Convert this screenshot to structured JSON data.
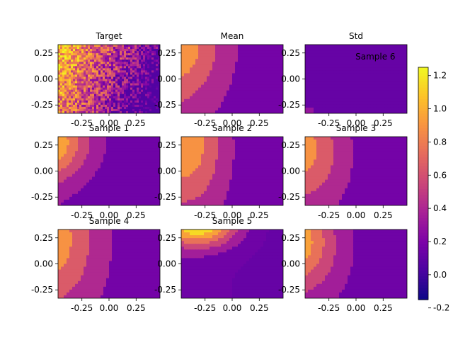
{
  "figure": {
    "background": "#ffffff"
  },
  "chart_data": {
    "type": "heatmap",
    "colormap": "plasma",
    "colorbar": {
      "range": [
        -0.15,
        1.25
      ],
      "ticks": [
        "1.2",
        "1.0",
        "0.8",
        "0.6",
        "0.4",
        "0.2",
        "0.0",
        "-0.2"
      ],
      "tick_values": [
        1.2,
        1.0,
        0.8,
        0.6,
        0.4,
        0.2,
        0.0,
        -0.2
      ]
    },
    "axes": {
      "xlim": [
        -0.47,
        0.47
      ],
      "ylim": [
        -0.33,
        0.33
      ],
      "xticks": [
        "-0.25",
        "0.00",
        "0.25"
      ],
      "xtick_values": [
        -0.25,
        0.0,
        0.25
      ],
      "yticks": [
        "0.25",
        "0.00",
        "-0.25"
      ],
      "ytick_values": [
        0.25,
        0.0,
        -0.25
      ]
    },
    "panels": [
      {
        "title": "Target",
        "kind": "noise"
      },
      {
        "title": "Mean",
        "kind": "contour",
        "params": {
          "peak": 1.0,
          "cx": -0.55,
          "cy": 0.35,
          "sx": 0.42,
          "sy": 0.55,
          "tilt": 0.0,
          "base": 0.25,
          "bands": 5
        }
      },
      {
        "title": "Std",
        "kind": "std",
        "overlay_text": "Sample 6"
      },
      {
        "title": "Sample 1",
        "kind": "contour",
        "params": {
          "peak": 1.3,
          "cx": -0.6,
          "cy": 0.45,
          "sx": 0.45,
          "sy": 0.35,
          "tilt": 0.9,
          "base": 0.2,
          "bands": 6
        }
      },
      {
        "title": "Sample 2",
        "kind": "contour",
        "params": {
          "peak": 0.95,
          "cx": -0.42,
          "cy": 0.3,
          "sx": 0.35,
          "sy": 0.6,
          "tilt": 0.2,
          "base": 0.2,
          "bands": 5
        }
      },
      {
        "title": "Sample 3",
        "kind": "contour",
        "params": {
          "peak": 0.9,
          "cx": -0.5,
          "cy": 0.3,
          "sx": 0.38,
          "sy": 0.5,
          "tilt": 0.4,
          "base": 0.22,
          "bands": 5
        }
      },
      {
        "title": "Sample 4",
        "kind": "contour",
        "params": {
          "peak": 0.95,
          "cx": -0.55,
          "cy": 0.3,
          "sx": 0.42,
          "sy": 0.6,
          "tilt": 0.25,
          "base": 0.25,
          "bands": 5
        }
      },
      {
        "title": "Sample 5",
        "kind": "contour",
        "params": {
          "peak": 1.35,
          "cx": -0.35,
          "cy": 0.38,
          "sx": 0.35,
          "sy": 0.22,
          "tilt": -0.2,
          "base": 0.12,
          "bands": 6
        }
      },
      {
        "title": "",
        "kind": "contour",
        "params": {
          "peak": 1.05,
          "cx": -0.55,
          "cy": 0.35,
          "sx": 0.38,
          "sy": 0.45,
          "tilt": 0.6,
          "base": 0.22,
          "bands": 6
        }
      }
    ]
  }
}
